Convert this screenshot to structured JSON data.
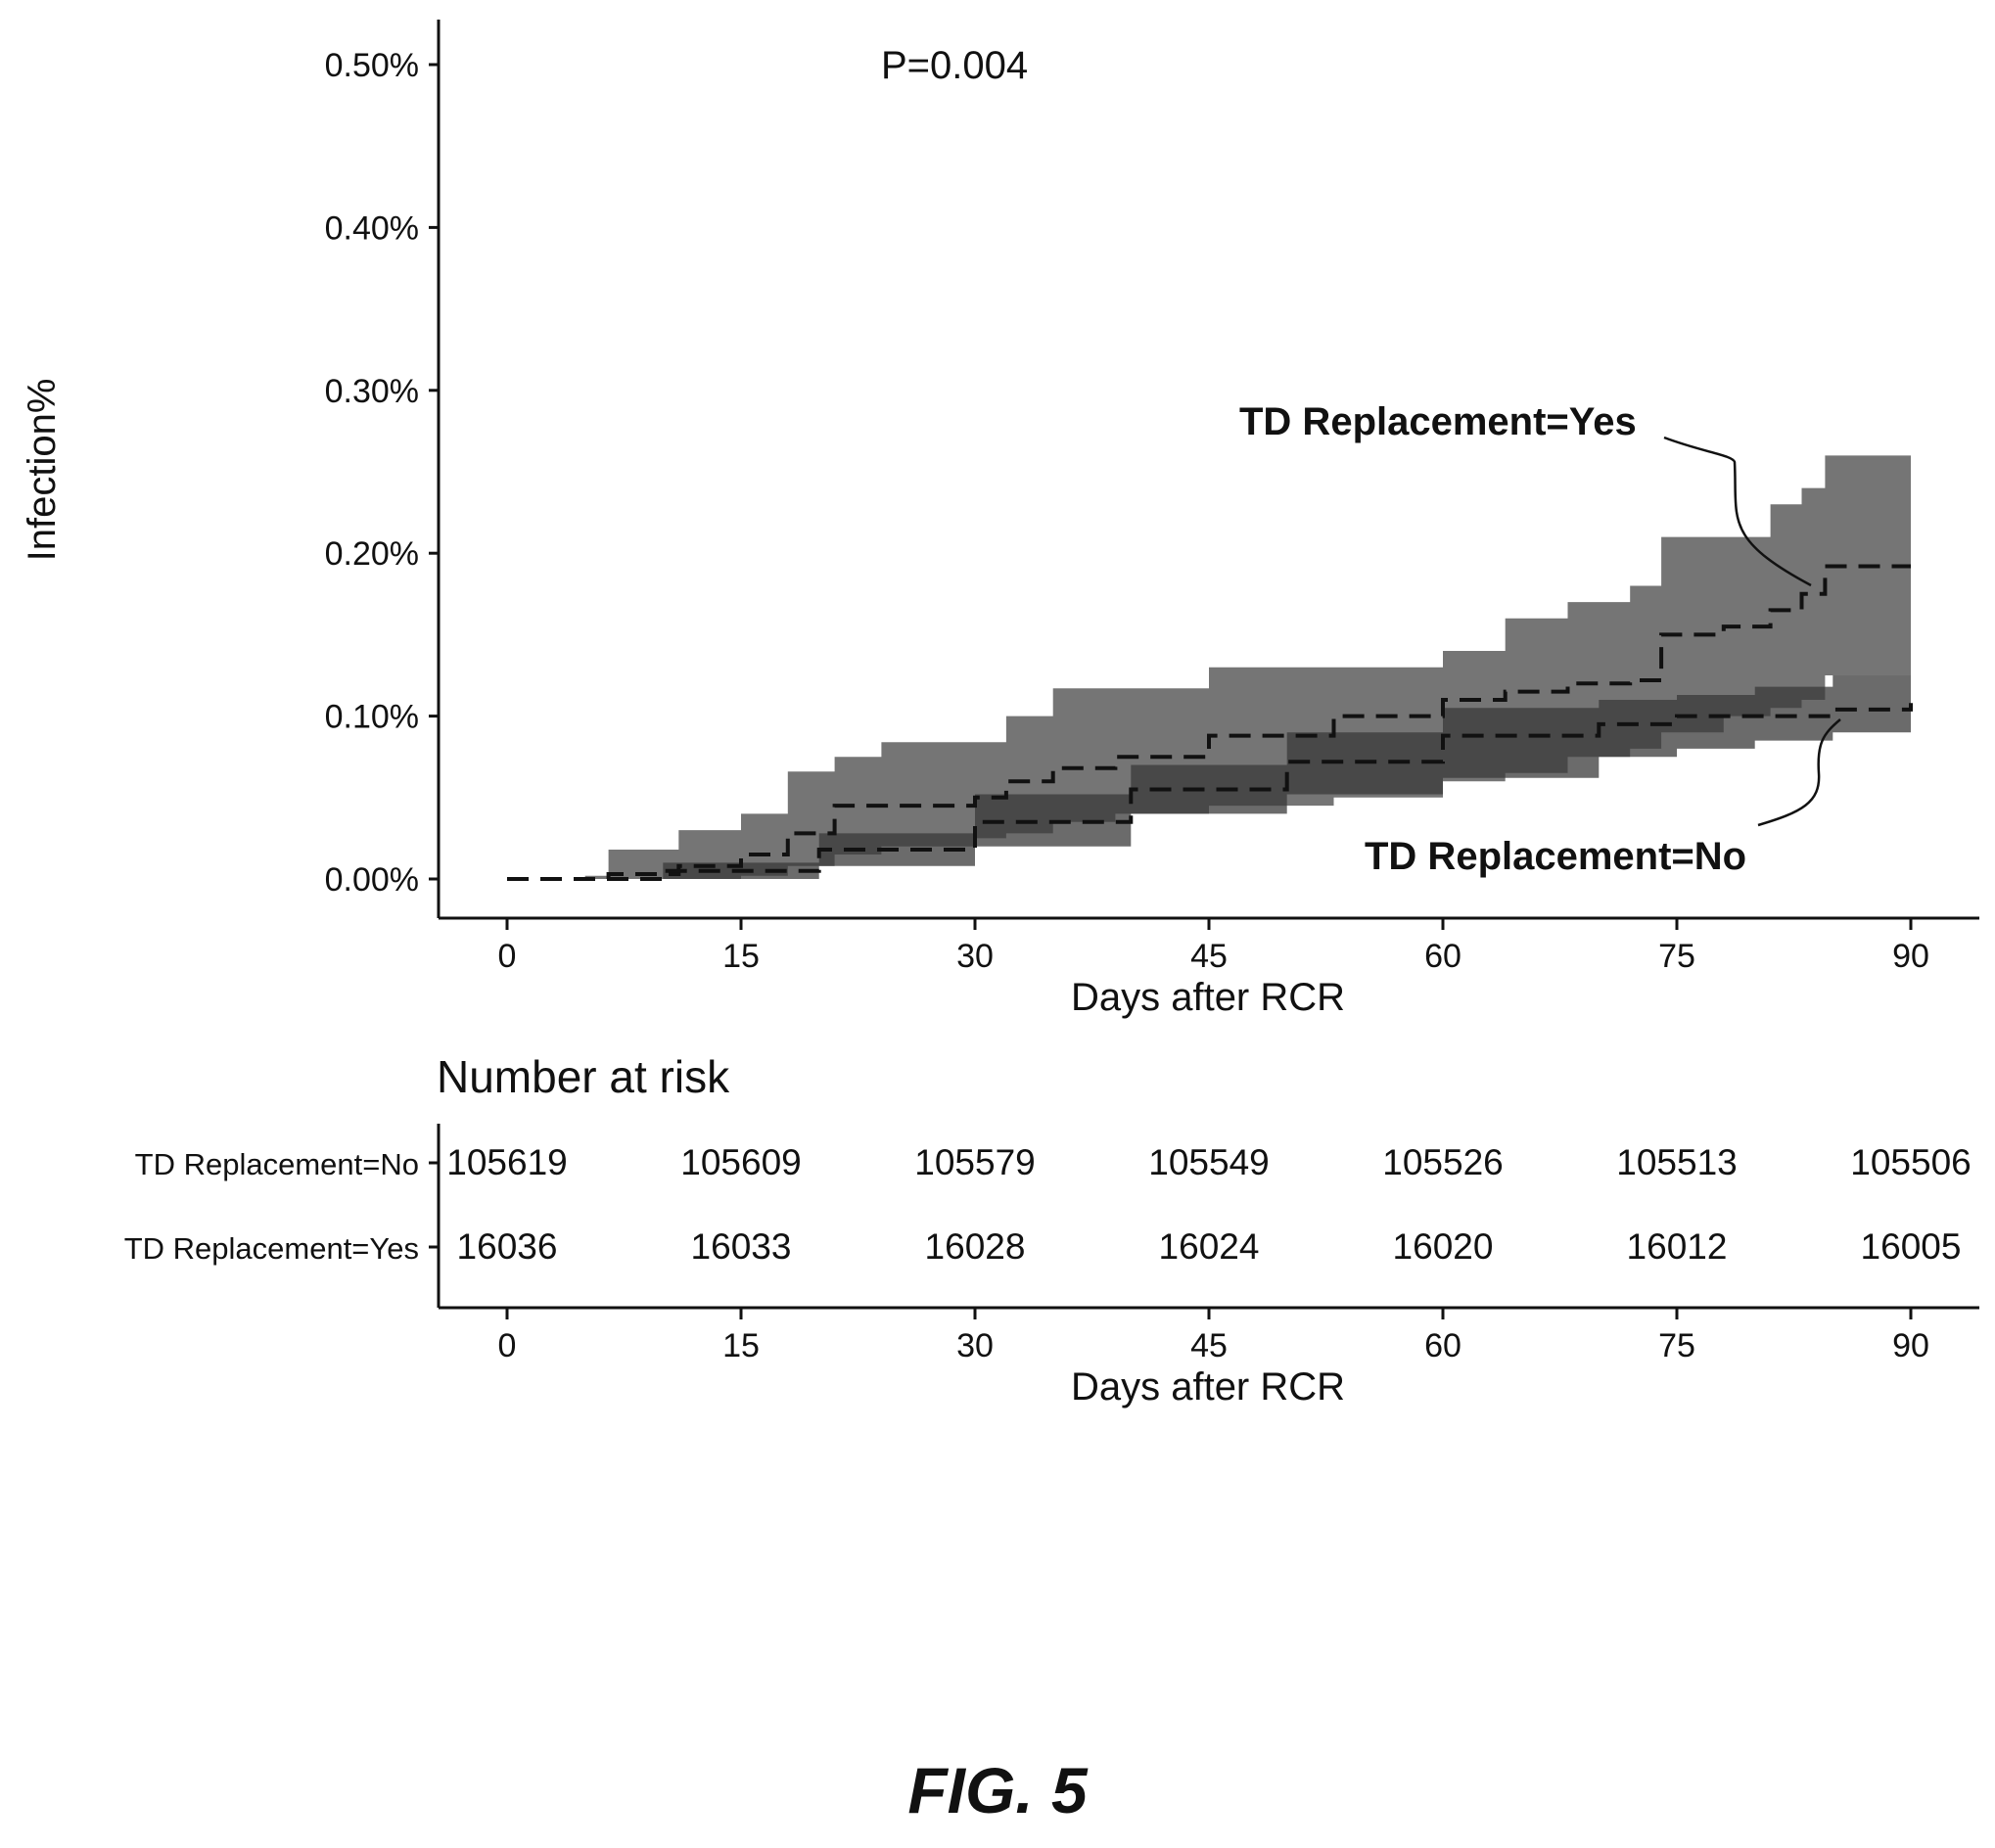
{
  "chart_data": [
    {
      "type": "line",
      "subtype": "kaplan-meier cumulative incidence with confidence bands",
      "ylabel": "Infection%",
      "xlabel": "Days after RCR",
      "xlim": [
        0,
        90
      ],
      "ylim": [
        0,
        0.5
      ],
      "x_ticks": [
        0,
        15,
        30,
        45,
        60,
        75,
        90
      ],
      "y_ticks": [
        0.0,
        0.1,
        0.2,
        0.3,
        0.4,
        0.5
      ],
      "y_tick_labels": [
        "0.00%",
        "0.10%",
        "0.20%",
        "0.30%",
        "0.40%",
        "0.50%"
      ],
      "annotations": [
        "P=0.004",
        "TD Replacement=Yes",
        "TD Replacement=No"
      ],
      "grid": false,
      "legend": "none (inline annotations with leader lines)",
      "series": [
        {
          "name": "TD Replacement=Yes",
          "line_style": "dashed",
          "band_color": "#6e6e6e",
          "x": [
            0,
            5,
            6.5,
            11,
            15,
            18,
            21,
            24,
            30,
            32,
            35,
            39,
            45,
            53,
            60,
            64,
            68,
            72,
            74,
            78,
            81,
            83,
            84.5,
            90
          ],
          "y": [
            0.0,
            0.0,
            0.003,
            0.008,
            0.015,
            0.028,
            0.045,
            0.045,
            0.05,
            0.06,
            0.068,
            0.075,
            0.088,
            0.1,
            0.11,
            0.115,
            0.12,
            0.122,
            0.15,
            0.155,
            0.165,
            0.175,
            0.192,
            0.192
          ],
          "lower": [
            0.0,
            0.0,
            0.0,
            0.0,
            0.002,
            0.008,
            0.015,
            0.02,
            0.025,
            0.028,
            0.035,
            0.04,
            0.045,
            0.05,
            0.06,
            0.065,
            0.075,
            0.08,
            0.09,
            0.1,
            0.105,
            0.11,
            0.125,
            0.125
          ],
          "upper": [
            0.0,
            0.002,
            0.018,
            0.03,
            0.04,
            0.066,
            0.075,
            0.084,
            0.084,
            0.1,
            0.117,
            0.117,
            0.13,
            0.13,
            0.14,
            0.16,
            0.17,
            0.18,
            0.21,
            0.21,
            0.23,
            0.24,
            0.26,
            0.26
          ]
        },
        {
          "name": "TD Replacement=No",
          "line_style": "dashed",
          "band_color": "#3a3a3a",
          "x": [
            0,
            10,
            20,
            30,
            40,
            50,
            60,
            70,
            75,
            80,
            85,
            90
          ],
          "y": [
            0.0,
            0.005,
            0.018,
            0.035,
            0.055,
            0.072,
            0.088,
            0.095,
            0.1,
            0.1,
            0.104,
            0.108
          ],
          "lower": [
            0.0,
            0.0,
            0.008,
            0.02,
            0.04,
            0.052,
            0.062,
            0.075,
            0.08,
            0.085,
            0.09,
            0.09
          ],
          "upper": [
            0.0,
            0.01,
            0.028,
            0.052,
            0.07,
            0.09,
            0.105,
            0.11,
            0.113,
            0.118,
            0.125,
            0.125
          ]
        }
      ]
    },
    {
      "type": "table",
      "title": "Number at risk",
      "xlabel": "Days after RCR",
      "x_ticks": [
        0,
        15,
        30,
        45,
        60,
        75,
        90
      ],
      "rows": [
        {
          "name": "TD Replacement=No",
          "values": [
            "105619",
            "105609",
            "105579",
            "105549",
            "105526",
            "105513",
            "105506"
          ]
        },
        {
          "name": "TD Replacement=Yes",
          "values": [
            "16036",
            "16033",
            "16028",
            "16024",
            "16020",
            "16012",
            "16005"
          ]
        }
      ]
    }
  ],
  "figure_label": "FIG. 5"
}
